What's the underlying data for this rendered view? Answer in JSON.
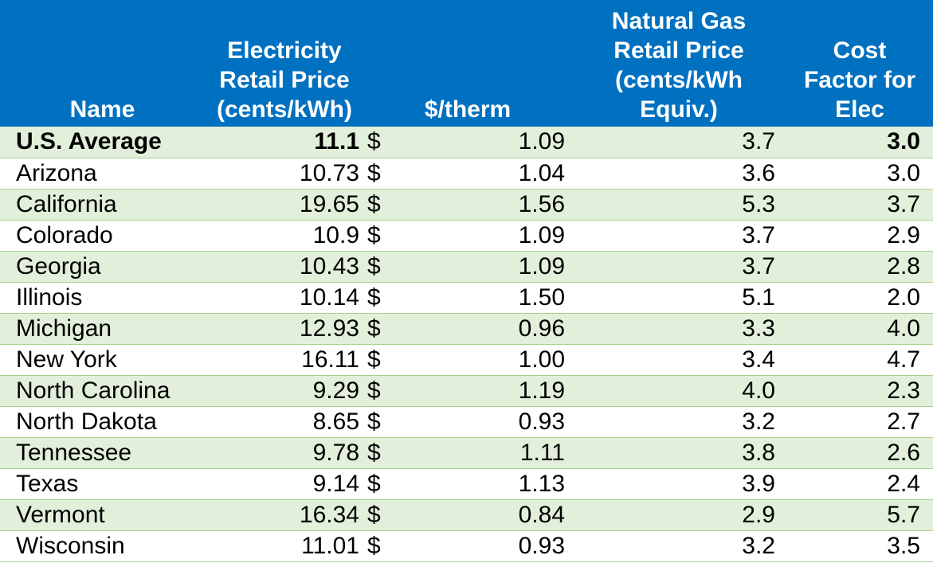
{
  "header": {
    "name": "Name",
    "elec_line1": "Electricity",
    "elec_line2": "Retail Price",
    "elec_line3": "(cents/kWh)",
    "therm": "$/therm",
    "gas_line1": "Natural Gas",
    "gas_line2": "Retail Price",
    "gas_line3": "(cents/kWh",
    "gas_line4": "Equiv.)",
    "cost_line1": "Cost",
    "cost_line2": "Factor for",
    "cost_line3": "Elec"
  },
  "colors": {
    "header_bg": "#0070c0",
    "header_text": "#ffffff",
    "band_bg": "#e2efda",
    "row_border": "#a9d08e"
  },
  "rows": [
    {
      "name": "U.S. Average",
      "elec": "11.1",
      "dollar": "$",
      "therm": "1.09",
      "gas": "3.7",
      "cost": "3.0"
    },
    {
      "name": "Arizona",
      "elec": "10.73",
      "dollar": "$",
      "therm": "1.04",
      "gas": "3.6",
      "cost": "3.0"
    },
    {
      "name": "California",
      "elec": "19.65",
      "dollar": "$",
      "therm": "1.56",
      "gas": "5.3",
      "cost": "3.7"
    },
    {
      "name": "Colorado",
      "elec": "10.9",
      "dollar": "$",
      "therm": "1.09",
      "gas": "3.7",
      "cost": "2.9"
    },
    {
      "name": "Georgia",
      "elec": "10.43",
      "dollar": "$",
      "therm": "1.09",
      "gas": "3.7",
      "cost": "2.8"
    },
    {
      "name": "Illinois",
      "elec": "10.14",
      "dollar": "$",
      "therm": "1.50",
      "gas": "5.1",
      "cost": "2.0"
    },
    {
      "name": "Michigan",
      "elec": "12.93",
      "dollar": "$",
      "therm": "0.96",
      "gas": "3.3",
      "cost": "4.0"
    },
    {
      "name": "New York",
      "elec": "16.11",
      "dollar": "$",
      "therm": "1.00",
      "gas": "3.4",
      "cost": "4.7"
    },
    {
      "name": "North Carolina",
      "elec": "9.29",
      "dollar": "$",
      "therm": "1.19",
      "gas": "4.0",
      "cost": "2.3"
    },
    {
      "name": "North Dakota",
      "elec": "8.65",
      "dollar": "$",
      "therm": "0.93",
      "gas": "3.2",
      "cost": "2.7"
    },
    {
      "name": "Tennessee",
      "elec": "9.78",
      "dollar": "$",
      "therm": "1.11",
      "gas": "3.8",
      "cost": "2.6"
    },
    {
      "name": "Texas",
      "elec": "9.14",
      "dollar": "$",
      "therm": "1.13",
      "gas": "3.9",
      "cost": "2.4"
    },
    {
      "name": "Vermont",
      "elec": "16.34",
      "dollar": "$",
      "therm": "0.84",
      "gas": "2.9",
      "cost": "5.7"
    },
    {
      "name": "Wisconsin",
      "elec": "11.01",
      "dollar": "$",
      "therm": "0.93",
      "gas": "3.2",
      "cost": "3.5"
    }
  ]
}
